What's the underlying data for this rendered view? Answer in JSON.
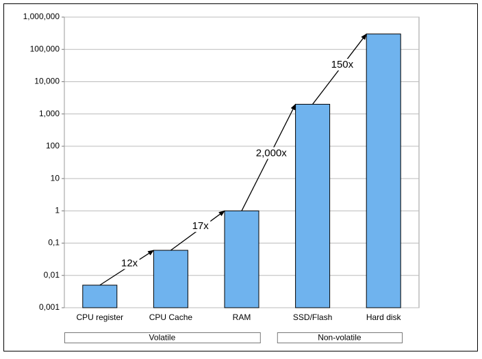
{
  "chart_data": {
    "type": "bar",
    "categories": [
      "CPU register",
      "CPU Cache",
      "RAM",
      "SSD/Flash",
      "Hard disk"
    ],
    "values": [
      0.005,
      0.06,
      1,
      2000,
      300000
    ],
    "color": "#6fb3ee",
    "log_scale": true,
    "ylim": [
      0.001,
      1000000
    ],
    "yticks": [
      {
        "value": 0.001,
        "label": "0,001"
      },
      {
        "value": 0.01,
        "label": "0,01"
      },
      {
        "value": 0.1,
        "label": "0,1"
      },
      1,
      10,
      100,
      {
        "value": 1000,
        "label": "1,000"
      },
      {
        "value": 10000,
        "label": "10,000"
      },
      {
        "value": 100000,
        "label": "100,000"
      },
      {
        "value": 1000000,
        "label": "1,000,000"
      }
    ],
    "grid": true,
    "annotations": [
      "12x",
      "17x",
      "2,000x",
      "150x"
    ],
    "groups": [
      {
        "name": "Volatile",
        "members": [
          "CPU register",
          "CPU Cache",
          "RAM"
        ]
      },
      {
        "name": "Non-volatile",
        "members": [
          "SSD/Flash",
          "Hard disk"
        ]
      }
    ]
  }
}
